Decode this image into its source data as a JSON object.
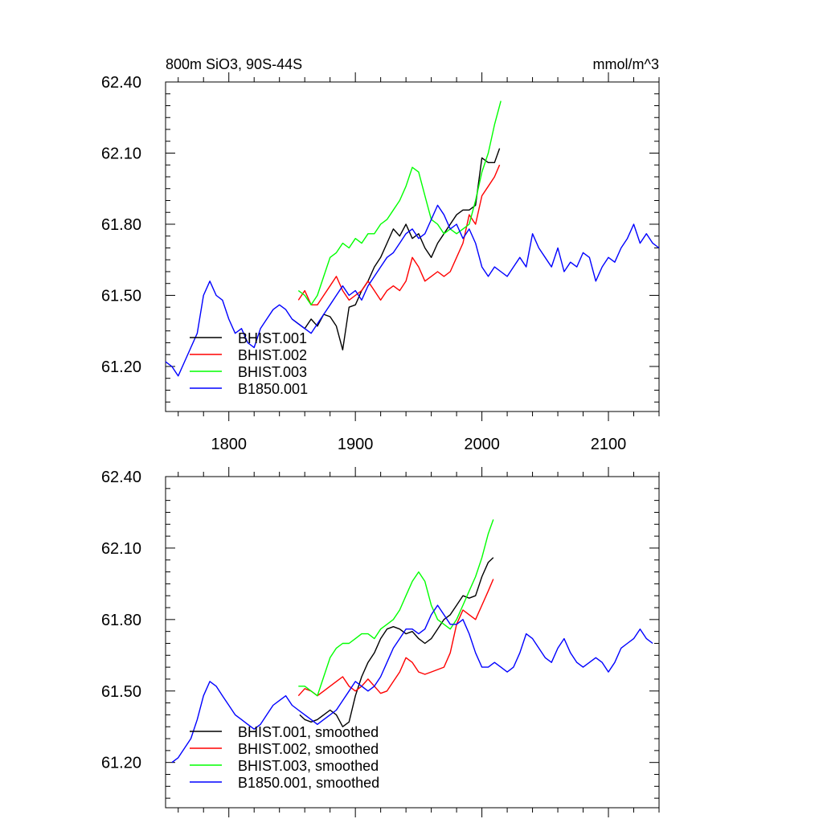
{
  "chart_data": [
    {
      "type": "line",
      "title_left": "800m SiO3, 90S-44S",
      "title_right": "mmol/m^3",
      "xlim": [
        1750,
        2140
      ],
      "ylim": [
        61.01,
        62.4
      ],
      "xticks": [
        1800,
        1900,
        2000,
        2100
      ],
      "xtick_labels": [
        "1800",
        "1900",
        "2000",
        "2100"
      ],
      "show_xtick_labels": true,
      "yticks": [
        61.2,
        61.5,
        61.8,
        62.1,
        62.4
      ],
      "ytick_labels": [
        "61.20",
        "61.50",
        "61.80",
        "62.10",
        "62.40"
      ],
      "legend_position": "bottom-left",
      "series": [
        {
          "name": "BHIST.001",
          "color": "#000000",
          "x": [
            1850,
            1855,
            1860,
            1865,
            1870,
            1875,
            1880,
            1885,
            1890,
            1895,
            1900,
            1905,
            1910,
            1915,
            1920,
            1925,
            1930,
            1935,
            1940,
            1945,
            1950,
            1955,
            1960,
            1965,
            1970,
            1975,
            1980,
            1985,
            1990,
            1995,
            2000,
            2005,
            2010,
            2014
          ],
          "y": [
            61.4,
            61.38,
            61.36,
            61.4,
            61.37,
            61.42,
            61.41,
            61.37,
            61.27,
            61.45,
            61.46,
            61.52,
            61.56,
            61.62,
            61.66,
            61.72,
            61.78,
            61.75,
            61.8,
            61.74,
            61.76,
            61.7,
            61.66,
            61.72,
            61.76,
            61.8,
            61.84,
            61.86,
            61.86,
            61.88,
            62.08,
            62.06,
            62.06,
            62.12
          ]
        },
        {
          "name": "BHIST.002",
          "color": "#ff0000",
          "x": [
            1855,
            1860,
            1865,
            1870,
            1875,
            1880,
            1885,
            1890,
            1895,
            1900,
            1905,
            1910,
            1915,
            1920,
            1925,
            1930,
            1935,
            1940,
            1945,
            1950,
            1955,
            1960,
            1965,
            1970,
            1975,
            1980,
            1985,
            1990,
            1995,
            2000,
            2005,
            2010,
            2014
          ],
          "y": [
            61.48,
            61.52,
            61.46,
            61.46,
            61.5,
            61.54,
            61.58,
            61.52,
            61.48,
            61.5,
            61.52,
            61.56,
            61.52,
            61.48,
            61.52,
            61.54,
            61.52,
            61.56,
            61.66,
            61.62,
            61.56,
            61.58,
            61.6,
            61.58,
            61.6,
            61.66,
            61.72,
            61.84,
            61.8,
            61.92,
            61.96,
            62.0,
            62.05
          ]
        },
        {
          "name": "BHIST.003",
          "color": "#00ff00",
          "x": [
            1855,
            1860,
            1865,
            1870,
            1875,
            1880,
            1885,
            1890,
            1895,
            1900,
            1905,
            1910,
            1915,
            1920,
            1925,
            1930,
            1935,
            1940,
            1945,
            1950,
            1955,
            1960,
            1965,
            1970,
            1975,
            1980,
            1985,
            1990,
            1995,
            2000,
            2005,
            2010,
            2015
          ],
          "y": [
            61.52,
            61.5,
            61.46,
            61.5,
            61.58,
            61.66,
            61.68,
            61.72,
            61.7,
            61.74,
            61.72,
            61.76,
            61.76,
            61.8,
            61.82,
            61.86,
            61.9,
            61.96,
            62.04,
            62.02,
            61.92,
            61.82,
            61.8,
            61.76,
            61.78,
            61.76,
            61.78,
            61.8,
            61.9,
            62.02,
            62.1,
            62.22,
            62.32
          ]
        },
        {
          "name": "B1850.001",
          "color": "#0000ff",
          "x": [
            1750,
            1755,
            1760,
            1765,
            1770,
            1775,
            1780,
            1785,
            1790,
            1795,
            1800,
            1805,
            1810,
            1815,
            1820,
            1825,
            1830,
            1835,
            1840,
            1845,
            1850,
            1855,
            1860,
            1865,
            1870,
            1875,
            1880,
            1885,
            1890,
            1895,
            1900,
            1905,
            1910,
            1915,
            1920,
            1925,
            1930,
            1935,
            1940,
            1945,
            1950,
            1955,
            1960,
            1965,
            1970,
            1975,
            1980,
            1985,
            1990,
            1995,
            2000,
            2005,
            2010,
            2015,
            2020,
            2025,
            2030,
            2035,
            2040,
            2045,
            2050,
            2055,
            2060,
            2065,
            2070,
            2075,
            2080,
            2085,
            2090,
            2095,
            2100,
            2105,
            2110,
            2115,
            2120,
            2125,
            2130,
            2135,
            2140
          ],
          "y": [
            61.22,
            61.2,
            61.16,
            61.22,
            61.28,
            61.34,
            61.5,
            61.56,
            61.5,
            61.48,
            61.4,
            61.34,
            61.36,
            61.3,
            61.28,
            61.36,
            61.4,
            61.44,
            61.46,
            61.44,
            61.4,
            61.38,
            61.36,
            61.34,
            61.38,
            61.42,
            61.46,
            61.5,
            61.54,
            61.5,
            61.52,
            61.48,
            61.54,
            61.58,
            61.62,
            61.66,
            61.68,
            61.72,
            61.76,
            61.78,
            61.74,
            61.76,
            61.82,
            61.88,
            61.84,
            61.78,
            61.8,
            61.74,
            61.78,
            61.72,
            61.62,
            61.58,
            61.62,
            61.6,
            61.58,
            61.62,
            61.66,
            61.62,
            61.76,
            61.7,
            61.66,
            61.62,
            61.7,
            61.6,
            61.64,
            61.62,
            61.68,
            61.66,
            61.56,
            61.62,
            61.66,
            61.64,
            61.7,
            61.74,
            61.8,
            61.72,
            61.76,
            61.72,
            61.7
          ]
        }
      ]
    },
    {
      "type": "line",
      "xlim": [
        1750,
        2140
      ],
      "ylim": [
        61.01,
        62.4
      ],
      "xticks": [
        1800,
        1900,
        2000,
        2100
      ],
      "show_xtick_labels": false,
      "yticks": [
        61.2,
        61.5,
        61.8,
        62.1,
        62.4
      ],
      "ytick_labels": [
        "61.20",
        "61.50",
        "61.80",
        "62.10",
        "62.40"
      ],
      "legend_position": "bottom-left",
      "series": [
        {
          "name": "BHIST.001, smoothed",
          "color": "#000000",
          "x": [
            1856,
            1860,
            1865,
            1870,
            1875,
            1880,
            1885,
            1890,
            1895,
            1900,
            1905,
            1910,
            1915,
            1920,
            1925,
            1930,
            1935,
            1940,
            1945,
            1950,
            1955,
            1960,
            1965,
            1970,
            1975,
            1980,
            1985,
            1990,
            1995,
            2000,
            2005,
            2009
          ],
          "y": [
            61.4,
            61.38,
            61.37,
            61.38,
            61.4,
            61.42,
            61.4,
            61.35,
            61.37,
            61.48,
            61.56,
            61.62,
            61.66,
            61.72,
            61.76,
            61.77,
            61.76,
            61.74,
            61.75,
            61.72,
            61.7,
            61.72,
            61.76,
            61.8,
            61.82,
            61.86,
            61.9,
            61.89,
            61.9,
            61.98,
            62.04,
            62.06
          ]
        },
        {
          "name": "BHIST.002, smoothed",
          "color": "#ff0000",
          "x": [
            1855,
            1860,
            1865,
            1870,
            1875,
            1880,
            1885,
            1890,
            1895,
            1900,
            1905,
            1910,
            1915,
            1920,
            1925,
            1930,
            1935,
            1940,
            1945,
            1950,
            1955,
            1960,
            1965,
            1970,
            1975,
            1980,
            1985,
            1990,
            1995,
            2000,
            2005,
            2009
          ],
          "y": [
            61.48,
            61.51,
            61.5,
            61.48,
            61.5,
            61.52,
            61.54,
            61.56,
            61.52,
            61.5,
            61.52,
            61.55,
            61.52,
            61.49,
            61.5,
            61.54,
            61.58,
            61.64,
            61.62,
            61.58,
            61.57,
            61.58,
            61.59,
            61.6,
            61.66,
            61.78,
            61.84,
            61.82,
            61.8,
            61.86,
            61.92,
            61.97
          ]
        },
        {
          "name": "BHIST.003, smoothed",
          "color": "#00ff00",
          "x": [
            1855,
            1860,
            1865,
            1870,
            1875,
            1880,
            1885,
            1890,
            1895,
            1900,
            1905,
            1910,
            1915,
            1920,
            1925,
            1930,
            1935,
            1940,
            1945,
            1950,
            1955,
            1960,
            1965,
            1970,
            1975,
            1980,
            1985,
            1990,
            1995,
            2000,
            2005,
            2009
          ],
          "y": [
            61.52,
            61.52,
            61.5,
            61.48,
            61.56,
            61.64,
            61.68,
            61.7,
            61.7,
            61.72,
            61.74,
            61.74,
            61.72,
            61.76,
            61.78,
            61.8,
            61.84,
            61.9,
            61.96,
            62.0,
            61.96,
            61.86,
            61.8,
            61.78,
            61.76,
            61.8,
            61.86,
            61.92,
            61.98,
            62.06,
            62.16,
            62.22
          ]
        },
        {
          "name": "B1850.001, smoothed",
          "color": "#0000ff",
          "x": [
            1755,
            1760,
            1765,
            1770,
            1775,
            1780,
            1785,
            1790,
            1795,
            1800,
            1805,
            1810,
            1815,
            1820,
            1825,
            1830,
            1835,
            1840,
            1845,
            1850,
            1855,
            1860,
            1865,
            1870,
            1875,
            1880,
            1885,
            1890,
            1895,
            1900,
            1905,
            1910,
            1915,
            1920,
            1925,
            1930,
            1935,
            1940,
            1945,
            1950,
            1955,
            1960,
            1965,
            1970,
            1975,
            1980,
            1985,
            1990,
            1995,
            2000,
            2005,
            2010,
            2015,
            2020,
            2025,
            2030,
            2035,
            2040,
            2045,
            2050,
            2055,
            2060,
            2065,
            2070,
            2075,
            2080,
            2085,
            2090,
            2095,
            2100,
            2105,
            2110,
            2115,
            2120,
            2125,
            2130,
            2135
          ],
          "y": [
            61.2,
            61.22,
            61.26,
            61.3,
            61.38,
            61.48,
            61.54,
            61.52,
            61.48,
            61.44,
            61.4,
            61.38,
            61.36,
            61.34,
            61.36,
            61.4,
            61.44,
            61.46,
            61.48,
            61.44,
            61.42,
            61.4,
            61.38,
            61.36,
            61.38,
            61.4,
            61.42,
            61.46,
            61.5,
            61.54,
            61.52,
            61.5,
            61.52,
            61.56,
            61.62,
            61.68,
            61.72,
            61.76,
            61.76,
            61.74,
            61.76,
            61.82,
            61.86,
            61.82,
            61.78,
            61.78,
            61.8,
            61.74,
            61.66,
            61.6,
            61.6,
            61.62,
            61.6,
            61.58,
            61.6,
            61.66,
            61.74,
            61.72,
            61.68,
            61.64,
            61.62,
            61.68,
            61.72,
            61.66,
            61.62,
            61.6,
            61.62,
            61.64,
            61.62,
            61.58,
            61.62,
            61.68,
            61.7,
            61.72,
            61.76,
            61.72,
            61.7
          ]
        }
      ]
    }
  ]
}
